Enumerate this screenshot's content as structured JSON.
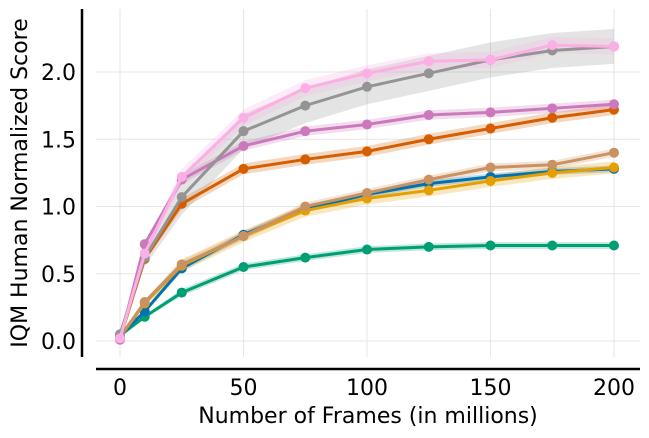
{
  "chart_data": {
    "type": "line",
    "title": "",
    "xlabel": "Number of Frames (in millions)",
    "ylabel": "IQM Human Normalized Score",
    "xlim": [
      -5,
      210
    ],
    "ylim": [
      -0.1,
      2.45
    ],
    "xticks": [
      0,
      50,
      100,
      150,
      200
    ],
    "yticks": [
      0.0,
      0.5,
      1.0,
      1.5,
      2.0
    ],
    "xtick_labels": [
      "0",
      "50",
      "100",
      "150",
      "200"
    ],
    "ytick_labels": [
      "0.0",
      "0.5",
      "1.0",
      "1.5",
      "2.0"
    ],
    "grid": true,
    "legend": "none",
    "x": [
      0,
      10,
      25,
      50,
      75,
      100,
      125,
      150,
      175,
      200
    ],
    "series": [
      {
        "color": "#009E73",
        "values": [
          0.04,
          0.18,
          0.36,
          0.55,
          0.62,
          0.68,
          0.7,
          0.71,
          0.71,
          0.71
        ],
        "band": 0.025
      },
      {
        "color": "#0072B2",
        "values": [
          0.04,
          0.22,
          0.54,
          0.79,
          0.98,
          1.09,
          1.17,
          1.22,
          1.26,
          1.28
        ],
        "band": 0.025
      },
      {
        "color": "#E69F00",
        "values": [
          0.03,
          0.28,
          0.56,
          0.78,
          0.97,
          1.06,
          1.12,
          1.19,
          1.25,
          1.29
        ],
        "band": 0.045
      },
      {
        "color": "#CA9161",
        "values": [
          0.03,
          0.29,
          0.57,
          0.78,
          1.0,
          1.1,
          1.2,
          1.29,
          1.31,
          1.4
        ],
        "band": 0.03
      },
      {
        "color": "#D55E00",
        "values": [
          0.02,
          0.61,
          1.02,
          1.28,
          1.35,
          1.41,
          1.5,
          1.58,
          1.66,
          1.72
        ],
        "band": 0.04
      },
      {
        "color": "#CC78BC",
        "values": [
          0.01,
          0.72,
          1.2,
          1.45,
          1.56,
          1.61,
          1.68,
          1.7,
          1.73,
          1.76
        ],
        "band": 0.035
      },
      {
        "color": "#949494",
        "values": [
          0.05,
          0.62,
          1.07,
          1.56,
          1.75,
          1.89,
          1.99,
          2.09,
          2.16,
          2.19
        ],
        "band": 0.13
      },
      {
        "color": "#FBAFE4",
        "values": [
          0.02,
          0.65,
          1.22,
          1.66,
          1.88,
          1.99,
          2.08,
          2.09,
          2.2,
          2.19
        ],
        "band": 0.06
      }
    ]
  }
}
